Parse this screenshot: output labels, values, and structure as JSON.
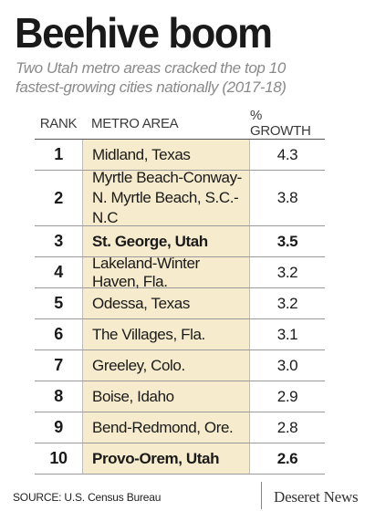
{
  "header": {
    "title": "Beehive boom",
    "subtitle_line1": "Two Utah metro areas cracked the top 10",
    "subtitle_line2": "fastest-growing cities nationally (2017-18)"
  },
  "table": {
    "columns": {
      "rank": "RANK",
      "area": "METRO AREA",
      "growth": "% GROWTH"
    },
    "rows": [
      {
        "rank": "1",
        "area": "Midland, Texas",
        "growth": "4.3"
      },
      {
        "rank": "2",
        "area": "Myrtle Beach-Conway-\nN. Myrtle Beach, S.C.-N.C",
        "growth": "3.8"
      },
      {
        "rank": "3",
        "area": "St. George, Utah",
        "growth": "3.5"
      },
      {
        "rank": "4",
        "area": "Lakeland-Winter Haven, Fla.",
        "growth": "3.2"
      },
      {
        "rank": "5",
        "area": "Odessa, Texas",
        "growth": "3.2"
      },
      {
        "rank": "6",
        "area": "The Villages, Fla.",
        "growth": "3.1"
      },
      {
        "rank": "7",
        "area": "Greeley, Colo.",
        "growth": "3.0"
      },
      {
        "rank": "8",
        "area": "Boise, Idaho",
        "growth": "2.9"
      },
      {
        "rank": "9",
        "area": "Bend-Redmond, Ore.",
        "growth": "2.8"
      },
      {
        "rank": "10",
        "area": "Provo-Orem, Utah",
        "growth": "2.6"
      }
    ]
  },
  "footer": {
    "source": "SOURCE: U.S. Census Bureau",
    "brand": "Deseret News"
  },
  "colors": {
    "highlight_column": "#f6ebcc",
    "subtitle": "#8a8a8a"
  }
}
